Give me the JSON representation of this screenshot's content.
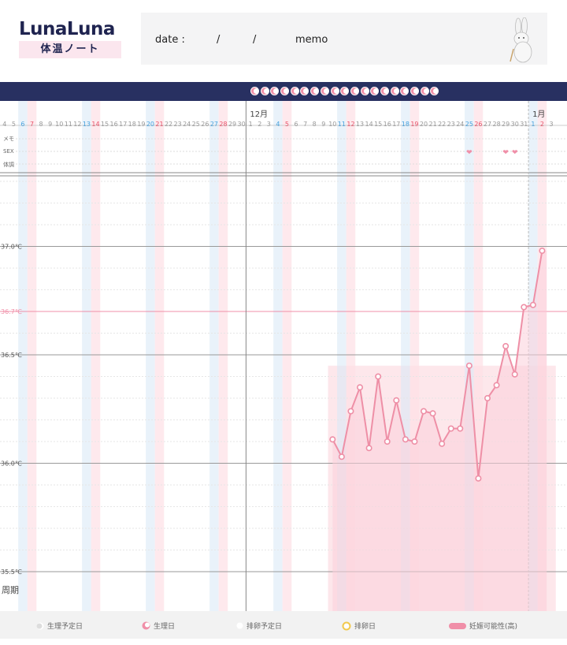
{
  "header": {
    "logo_text": "LunaLuna",
    "logo_sub": "体温ノート",
    "date_label": "date :",
    "slash1": "/",
    "slash2": "/",
    "memo_label": "memo"
  },
  "row_labels": {
    "memo": "メモ",
    "sex": "SEX",
    "condition": "体調"
  },
  "cycle_label": "周期",
  "legend": {
    "period_expected": "生理予定日",
    "period": "生理日",
    "ovulation_expected": "排卵予定日",
    "ovulation": "排卵日",
    "fertile": "妊娠可能性(高)"
  },
  "colors": {
    "brand": "#1f2450",
    "accent": "#f08fa8",
    "line": "#ee8fa6",
    "fill": "#fde3e8",
    "saturday": "#4aa3df",
    "sunday": "#e9546b"
  },
  "icons": [
    "rabbit-mascot-icon",
    "moon-icon",
    "heart-icon",
    "ring-icon"
  ],
  "chart_data": {
    "type": "line",
    "title": "",
    "xlabel": "",
    "ylabel": "",
    "months": [
      {
        "label": "12月",
        "day_index": 27
      },
      {
        "label": "1月",
        "day_index": 58
      }
    ],
    "day_labels": [
      "4",
      "5",
      "6",
      "7",
      "8",
      "9",
      "10",
      "11",
      "12",
      "13",
      "14",
      "15",
      "16",
      "17",
      "18",
      "19",
      "20",
      "21",
      "22",
      "23",
      "24",
      "25",
      "26",
      "27",
      "28",
      "29",
      "30",
      "1",
      "2",
      "3",
      "4",
      "5",
      "6",
      "7",
      "8",
      "9",
      "10",
      "11",
      "12",
      "13",
      "14",
      "15",
      "16",
      "17",
      "18",
      "19",
      "20",
      "21",
      "22",
      "23",
      "24",
      "25",
      "26",
      "27",
      "28",
      "29",
      "30",
      "31",
      "1",
      "2",
      "3"
    ],
    "saturday_indices": [
      2,
      9,
      16,
      23,
      30,
      37,
      44,
      51,
      58
    ],
    "sunday_indices": [
      3,
      10,
      17,
      24,
      31,
      38,
      45,
      52,
      59
    ],
    "y_ticks": [
      {
        "value": 37.0,
        "label": "37.0℃"
      },
      {
        "value": 36.7,
        "label": "36.7℃",
        "highlight": true
      },
      {
        "value": 36.5,
        "label": "36.5℃"
      },
      {
        "value": 36.0,
        "label": "36.0℃"
      },
      {
        "value": 35.5,
        "label": "35.5℃"
      }
    ],
    "ylim": [
      35.5,
      37.0
    ],
    "series": [
      {
        "start_index": 36,
        "values": [
          36.11,
          36.03,
          36.24,
          36.35,
          36.07,
          36.4,
          36.1,
          36.29,
          36.11,
          36.1,
          36.24,
          36.23,
          36.09,
          36.16,
          36.16,
          36.45,
          35.93,
          36.3,
          36.36,
          36.54,
          36.41,
          36.72,
          36.73,
          36.98
        ]
      }
    ],
    "sex_marks": [
      {
        "day_index": 51,
        "label": "❤"
      },
      {
        "day_index": 55,
        "label": "❤"
      },
      {
        "day_index": 56,
        "label": "❤"
      }
    ],
    "fertile_range": [
      36,
      60
    ]
  }
}
